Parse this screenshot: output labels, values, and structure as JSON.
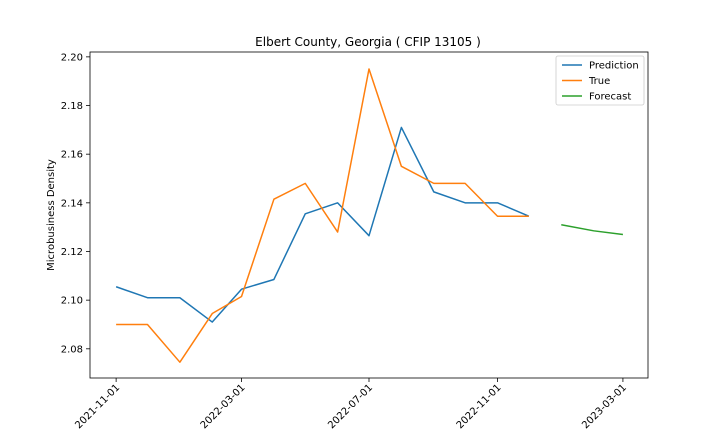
{
  "chart_data": {
    "type": "line",
    "title": "Elbert County, Georgia ( CFIP 13105 )",
    "xlabel": "",
    "ylabel": "Microbusiness Density",
    "x_ticks": [
      "2021-11-01",
      "2022-03-01",
      "2022-07-01",
      "2022-11-01",
      "2023-03-01"
    ],
    "y_ticks": [
      "2.08",
      "2.10",
      "2.12",
      "2.14",
      "2.16",
      "2.18",
      "2.20"
    ],
    "ylim": [
      2.068,
      2.202
    ],
    "xlim": [
      "2021-10-07",
      "2023-03-25"
    ],
    "grid": false,
    "legend_position": "top-right",
    "series": [
      {
        "name": "Prediction",
        "color": "#1f77b4",
        "x": [
          "2021-11-01",
          "2021-12-01",
          "2022-01-01",
          "2022-02-01",
          "2022-03-01",
          "2022-04-01",
          "2022-05-01",
          "2022-06-01",
          "2022-07-01",
          "2022-08-01",
          "2022-09-01",
          "2022-10-01",
          "2022-11-01",
          "2022-12-01"
        ],
        "values": [
          2.1055,
          2.101,
          2.101,
          2.091,
          2.1045,
          2.1085,
          2.1355,
          2.14,
          2.1265,
          2.171,
          2.1445,
          2.14,
          2.14,
          2.1345
        ]
      },
      {
        "name": "True",
        "color": "#ff7f0e",
        "x": [
          "2021-11-01",
          "2021-12-01",
          "2022-01-01",
          "2022-02-01",
          "2022-03-01",
          "2022-04-01",
          "2022-05-01",
          "2022-06-01",
          "2022-07-01",
          "2022-08-01",
          "2022-09-01",
          "2022-10-01",
          "2022-11-01",
          "2022-12-01"
        ],
        "values": [
          2.09,
          2.09,
          2.0745,
          2.0945,
          2.1015,
          2.1415,
          2.148,
          2.128,
          2.195,
          2.155,
          2.148,
          2.148,
          2.1345,
          2.1345
        ]
      },
      {
        "name": "Forecast",
        "color": "#2ca02c",
        "x": [
          "2023-01-01",
          "2023-02-01",
          "2023-03-01"
        ],
        "values": [
          2.131,
          2.1285,
          2.127
        ]
      }
    ]
  }
}
